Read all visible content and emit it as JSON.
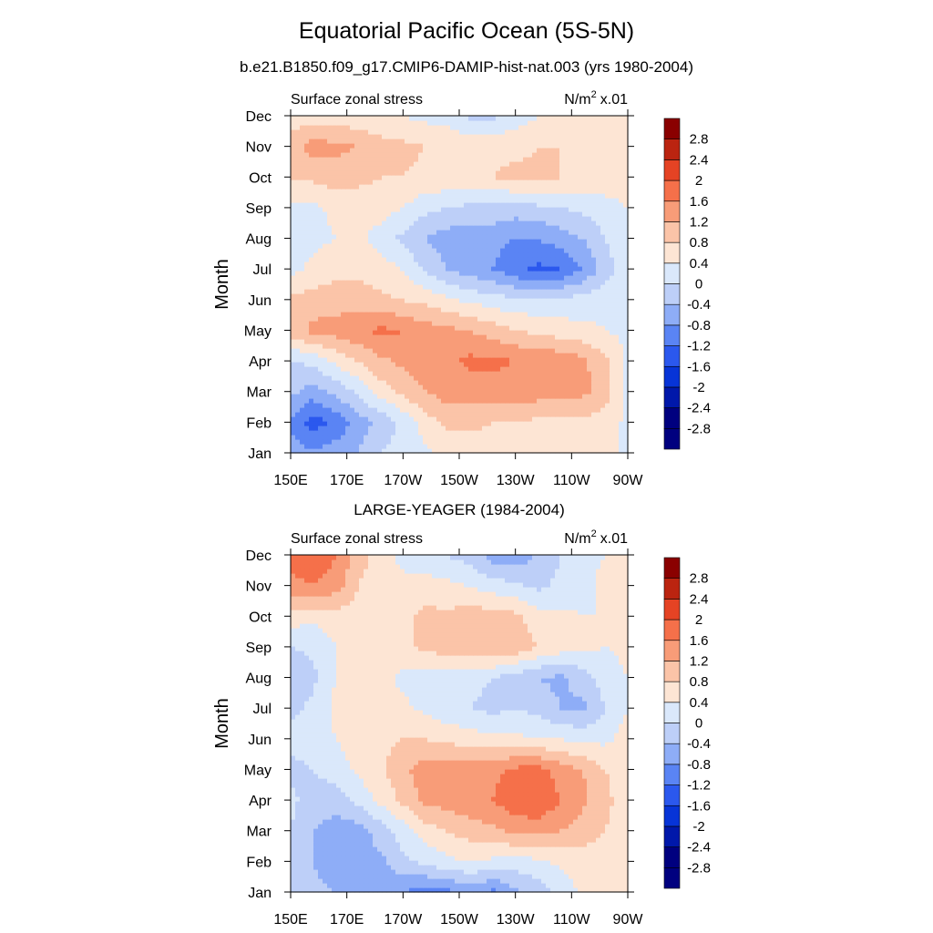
{
  "title": "Equatorial Pacific Ocean (5S-5N)",
  "subtitle": "b.e21.B1850.f09_g17.CMIP6-DAMIP-hist-nat.003 (yrs 1980-2004)",
  "chart_data": [
    {
      "type": "heatmap",
      "panel_title": "",
      "left_label": "Surface zonal stress",
      "units_label": "N/m",
      "units_sup": "2",
      "units_scale": "x.01",
      "xlabel": "",
      "ylabel": "Month",
      "xticks": [
        "150E",
        "170E",
        "170W",
        "150W",
        "130W",
        "110W",
        "90W"
      ],
      "yticks": [
        "Jan",
        "Feb",
        "Mar",
        "Apr",
        "May",
        "Jun",
        "Jul",
        "Aug",
        "Sep",
        "Oct",
        "Nov",
        "Dec"
      ],
      "colorbar_levels": [
        "-2.8",
        "-2.4",
        "-2",
        "-1.6",
        "-1.2",
        "-0.8",
        "-0.4",
        "0",
        "0.4",
        "0.8",
        "1.2",
        "1.6",
        "2",
        "2.4",
        "2.8"
      ],
      "grid": [
        [
          -1.0,
          -1.1,
          -1.0,
          -0.8,
          -0.4,
          -0.2,
          -0.1,
          0.1,
          0.1,
          0.2,
          0.1,
          0.1,
          0.1,
          0.1,
          0.0,
          0.0
        ],
        [
          -1.3,
          -1.8,
          -1.5,
          -1.0,
          -0.7,
          -0.3,
          0.2,
          0.5,
          0.5,
          0.4,
          0.4,
          0.3,
          0.3,
          0.3,
          0.2,
          -0.1
        ],
        [
          -0.7,
          -1.0,
          -0.7,
          -0.3,
          0.2,
          0.5,
          0.8,
          1.0,
          1.0,
          1.0,
          1.0,
          1.0,
          0.9,
          0.9,
          0.6,
          -0.1
        ],
        [
          -0.4,
          -0.3,
          0.1,
          0.4,
          0.7,
          0.9,
          1.0,
          1.1,
          1.3,
          1.3,
          1.2,
          1.1,
          1.1,
          0.9,
          0.5,
          -0.1
        ],
        [
          0.6,
          0.9,
          1.0,
          1.1,
          1.3,
          1.2,
          1.0,
          0.9,
          0.8,
          0.6,
          0.4,
          0.3,
          0.2,
          0.1,
          0.0,
          -0.1
        ],
        [
          0.5,
          0.6,
          0.6,
          0.6,
          0.5,
          0.4,
          0.3,
          0.1,
          -0.1,
          -0.2,
          -0.3,
          -0.3,
          -0.3,
          -0.2,
          -0.1,
          -0.1
        ],
        [
          -0.1,
          0.1,
          0.3,
          0.3,
          0.2,
          0.0,
          -0.5,
          -0.8,
          -1.0,
          -1.2,
          -1.5,
          -1.7,
          -1.6,
          -1.2,
          -0.6,
          -0.1
        ],
        [
          -0.2,
          -0.1,
          0.0,
          0.1,
          -0.2,
          -0.5,
          -0.8,
          -1.0,
          -1.1,
          -1.1,
          -1.2,
          -1.2,
          -1.0,
          -0.8,
          -0.4,
          -0.1
        ],
        [
          -0.1,
          -0.1,
          0.1,
          0.2,
          0.2,
          0.0,
          -0.3,
          -0.4,
          -0.5,
          -0.5,
          -0.6,
          -0.5,
          -0.4,
          -0.3,
          -0.2,
          0.0
        ],
        [
          0.4,
          0.5,
          0.6,
          0.5,
          0.4,
          0.4,
          0.3,
          0.3,
          0.3,
          0.4,
          0.5,
          0.5,
          0.4,
          0.4,
          0.3,
          0.3
        ],
        [
          0.6,
          1.0,
          0.9,
          0.8,
          0.6,
          0.5,
          0.4,
          0.4,
          0.3,
          0.3,
          0.3,
          0.4,
          0.4,
          0.4,
          0.3,
          0.3
        ],
        [
          0.2,
          0.2,
          0.2,
          0.1,
          0.0,
          0.0,
          -0.1,
          -0.2,
          -0.5,
          -0.5,
          -0.2,
          0.0,
          0.1,
          0.1,
          0.1,
          0.1
        ]
      ]
    },
    {
      "type": "heatmap",
      "panel_title": "LARGE-YEAGER (1984-2004)",
      "left_label": "Surface zonal stress",
      "units_label": "N/m",
      "units_sup": "2",
      "units_scale": "x.01",
      "xlabel": "",
      "ylabel": "Month",
      "xticks": [
        "150E",
        "170E",
        "170W",
        "150W",
        "130W",
        "110W",
        "90W"
      ],
      "yticks": [
        "Jan",
        "Feb",
        "Mar",
        "Apr",
        "May",
        "Jun",
        "Jul",
        "Aug",
        "Sep",
        "Oct",
        "Nov",
        "Dec"
      ],
      "colorbar_levels": [
        "-2.8",
        "-2.4",
        "-2",
        "-1.6",
        "-1.2",
        "-0.8",
        "-0.4",
        "0",
        "0.4",
        "0.8",
        "1.2",
        "1.6",
        "2",
        "2.4",
        "2.8"
      ],
      "grid": [
        [
          -0.6,
          -0.7,
          -0.8,
          -0.9,
          -1.0,
          -1.2,
          -1.4,
          -1.3,
          -1.1,
          -1.3,
          -0.9,
          -0.6,
          -0.3,
          0.1,
          0.2,
          0.2
        ],
        [
          -0.5,
          -0.8,
          -1.0,
          -1.0,
          -0.9,
          -0.5,
          -0.3,
          -0.1,
          0.0,
          -0.1,
          -0.2,
          -0.1,
          0.1,
          0.2,
          0.2,
          0.2
        ],
        [
          -0.4,
          -0.8,
          -1.0,
          -1.0,
          -0.6,
          -0.2,
          0.2,
          0.4,
          0.6,
          0.7,
          0.9,
          0.9,
          0.8,
          0.6,
          0.4,
          0.2
        ],
        [
          -0.3,
          -0.6,
          -0.6,
          -0.3,
          0.1,
          0.5,
          0.9,
          1.0,
          1.1,
          1.2,
          1.5,
          1.6,
          1.2,
          0.9,
          0.5,
          0.2
        ],
        [
          -0.5,
          -0.4,
          -0.2,
          0.1,
          0.3,
          0.7,
          1.0,
          1.1,
          1.0,
          1.1,
          1.3,
          1.4,
          1.0,
          0.8,
          0.4,
          0.2
        ],
        [
          -0.3,
          -0.2,
          0.0,
          0.2,
          0.3,
          0.4,
          0.4,
          0.3,
          0.2,
          0.1,
          0.1,
          0.0,
          0.0,
          -0.1,
          -0.1,
          0.2
        ],
        [
          -0.5,
          -0.3,
          0.1,
          0.3,
          0.2,
          0.1,
          -0.1,
          -0.3,
          -0.4,
          -0.5,
          -0.4,
          -0.5,
          -0.8,
          -0.9,
          -0.4,
          0.0
        ],
        [
          -0.8,
          -0.5,
          0.0,
          0.2,
          0.1,
          -0.1,
          -0.2,
          -0.2,
          -0.3,
          -0.4,
          -0.6,
          -0.8,
          -0.9,
          -0.6,
          -0.2,
          0.0
        ],
        [
          -0.4,
          -0.3,
          0.0,
          0.2,
          0.2,
          0.3,
          0.5,
          0.6,
          0.6,
          0.8,
          0.7,
          0.4,
          0.2,
          0.1,
          0.0,
          0.1
        ],
        [
          0.2,
          0.1,
          0.2,
          0.2,
          0.2,
          0.3,
          0.5,
          0.5,
          0.6,
          0.6,
          0.5,
          0.2,
          0.1,
          0.0,
          0.0,
          0.3
        ],
        [
          1.0,
          1.2,
          1.0,
          0.4,
          0.1,
          0.1,
          0.2,
          0.1,
          0.0,
          -0.2,
          -0.3,
          -0.5,
          -0.3,
          -0.1,
          0.1,
          0.3
        ],
        [
          1.5,
          1.6,
          1.2,
          0.6,
          0.2,
          -0.1,
          -0.3,
          -0.4,
          -0.6,
          -1.0,
          -1.1,
          -0.7,
          -0.4,
          -0.1,
          0.0,
          0.2
        ]
      ]
    }
  ],
  "colors": {
    "fills": [
      "#00007f",
      "#0018aa",
      "#0734d7",
      "#2b58ee",
      "#5a84f4",
      "#8eadf7",
      "#bdcff8",
      "#dae8fb",
      "#fde5d4",
      "#fbc4a8",
      "#f89c78",
      "#f5704a",
      "#e54324",
      "#bb2410",
      "#8a0000"
    ],
    "frame": "#000000"
  }
}
